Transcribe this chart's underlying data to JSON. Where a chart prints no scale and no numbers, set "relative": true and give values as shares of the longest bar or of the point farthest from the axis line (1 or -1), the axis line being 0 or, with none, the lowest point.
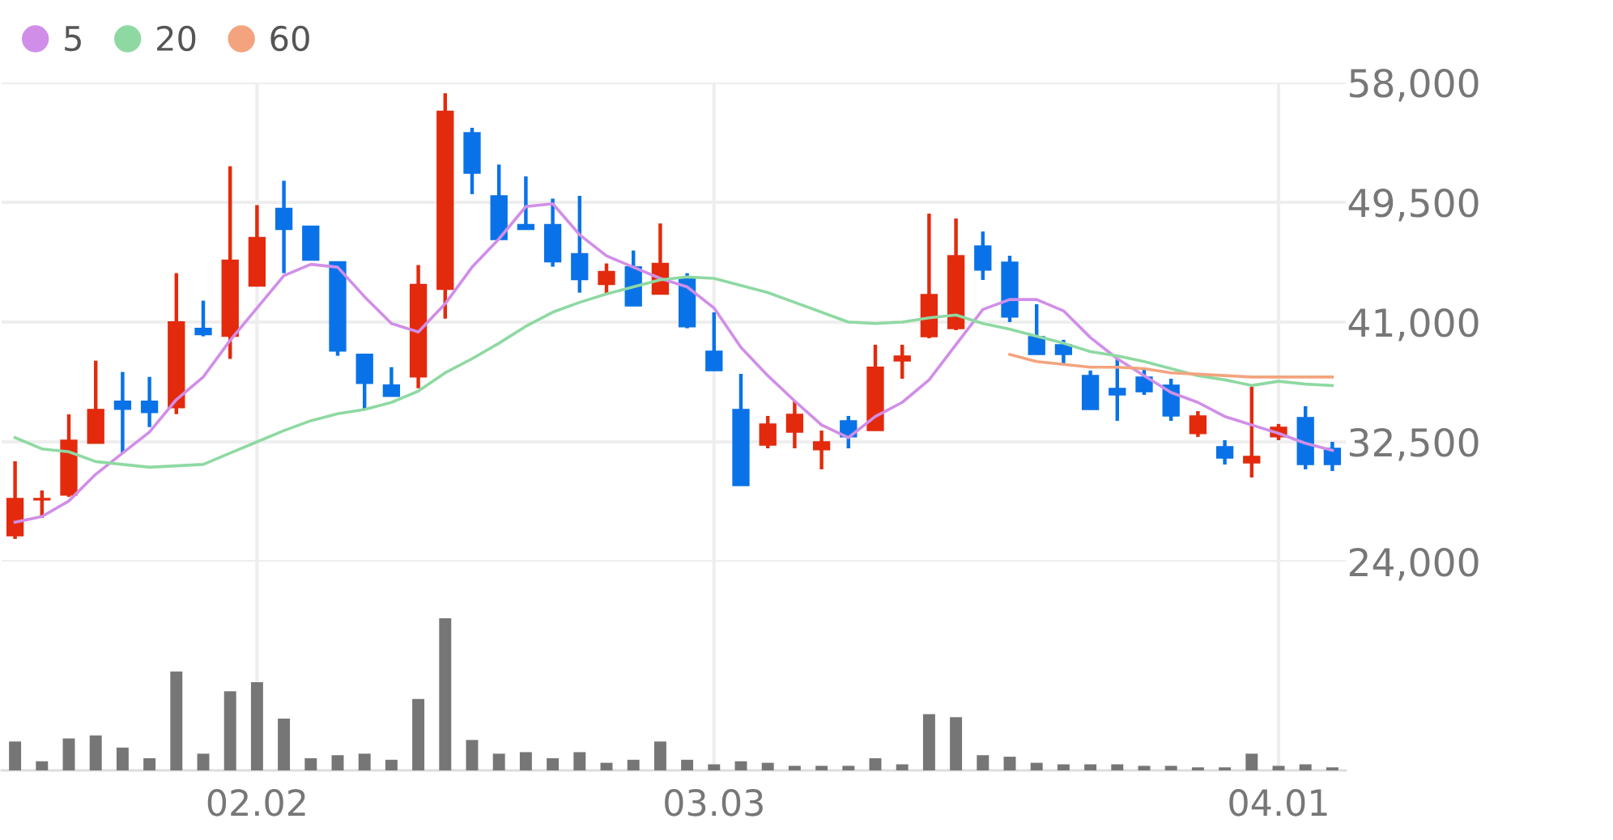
{
  "chart_data": [
    {
      "type": "candlestick",
      "categories": [
        null,
        null,
        null,
        null,
        null,
        null,
        null,
        null,
        null,
        "02.02",
        null,
        null,
        null,
        null,
        null,
        null,
        null,
        null,
        null,
        null,
        null,
        null,
        null,
        null,
        null,
        null,
        "03.03",
        null,
        null,
        null,
        null,
        null,
        null,
        null,
        null,
        null,
        null,
        null,
        null,
        null,
        null,
        null,
        null,
        null,
        null,
        null,
        null,
        "04.01",
        null,
        null
      ],
      "ohlc": [
        [
          25840,
          31120,
          25610,
          28480
        ],
        [
          28370,
          29050,
          27100,
          28480
        ],
        [
          28720,
          34450,
          28600,
          32620
        ],
        [
          32400,
          38260,
          32400,
          34800
        ],
        [
          35390,
          37460,
          31700,
          34810
        ],
        [
          35390,
          37110,
          33550,
          34580
        ],
        [
          34930,
          44470,
          34470,
          41020
        ],
        [
          40560,
          42520,
          39990,
          40100
        ],
        [
          39990,
          52060,
          38380,
          45390
        ],
        [
          43550,
          49300,
          43550,
          47000
        ],
        [
          49070,
          51030,
          44470,
          47580
        ],
        [
          47810,
          47810,
          45390,
          45390
        ],
        [
          45280,
          45280,
          38610,
          38950
        ],
        [
          38720,
          38720,
          34810,
          36650
        ],
        [
          36540,
          37800,
          35730,
          35730
        ],
        [
          37110,
          45050,
          36310,
          43670
        ],
        [
          43320,
          57240,
          41250,
          55970
        ],
        [
          54440,
          54790,
          50080,
          51570
        ],
        [
          49960,
          52180,
          46860,
          46860
        ],
        [
          47920,
          51340,
          47580,
          47580
        ],
        [
          47920,
          49760,
          44930,
          45280
        ],
        [
          45850,
          49960,
          43090,
          44010
        ],
        [
          43670,
          45160,
          42980,
          44590
        ],
        [
          44930,
          46080,
          42150,
          42150
        ],
        [
          42980,
          48000,
          42980,
          45160
        ],
        [
          44100,
          44470,
          40560,
          40660
        ],
        [
          38930,
          41690,
          37550,
          37550
        ],
        [
          34800,
          37320,
          29400,
          29400
        ],
        [
          32270,
          34340,
          32040,
          33760
        ],
        [
          33190,
          35370,
          32040,
          34450
        ],
        [
          31930,
          33300,
          30550,
          32500
        ],
        [
          33990,
          34340,
          32040,
          32850
        ],
        [
          33300,
          39390,
          33300,
          37800
        ],
        [
          38240,
          39390,
          36980,
          38590
        ],
        [
          39970,
          48690,
          39850,
          42950
        ],
        [
          40540,
          48350,
          40430,
          45710
        ],
        [
          46400,
          47430,
          43990,
          44680
        ],
        [
          45250,
          45710,
          41000,
          41350
        ],
        [
          39970,
          42270,
          38700,
          38700
        ],
        [
          39390,
          39740,
          38010,
          38700
        ],
        [
          37210,
          37560,
          34800,
          34800
        ],
        [
          36290,
          38380,
          33990,
          35830
        ],
        [
          37100,
          37780,
          35830,
          36060
        ],
        [
          36520,
          36980,
          33990,
          34340
        ],
        [
          33080,
          34680,
          32850,
          34340
        ],
        [
          32160,
          32620,
          30890,
          31350
        ],
        [
          31010,
          36410,
          29970,
          31470
        ],
        [
          32850,
          33770,
          32620,
          33540
        ],
        [
          34230,
          35030,
          30550,
          30890
        ],
        [
          32040,
          32500,
          30430,
          30890
        ]
      ],
      "colors": [
        "#e32a0d",
        "#e32a0d",
        "#e32a0d",
        "#e32a0d",
        "#0a72e8",
        "#0a72e8",
        "#e32a0d",
        "#0a72e8",
        "#e32a0d",
        "#e32a0d",
        "#0a72e8",
        "#0a72e8",
        "#0a72e8",
        "#0a72e8",
        "#0a72e8",
        "#e32a0d",
        "#e32a0d",
        "#0a72e8",
        "#0a72e8",
        "#0a72e8",
        "#0a72e8",
        "#0a72e8",
        "#e32a0d",
        "#0a72e8",
        "#e32a0d",
        "#0a72e8",
        "#0a72e8",
        "#0a72e8",
        "#e32a0d",
        "#e32a0d",
        "#e32a0d",
        "#0a72e8",
        "#e32a0d",
        "#e32a0d",
        "#e32a0d",
        "#e32a0d",
        "#0a72e8",
        "#0a72e8",
        "#0a72e8",
        "#0a72e8",
        "#0a72e8",
        "#0a72e8",
        "#0a72e8",
        "#0a72e8",
        "#e32a0d",
        "#0a72e8",
        "#e32a0d",
        "#e32a0d",
        "#0a72e8",
        "#0a72e8"
      ],
      "series": [
        {
          "name": "5",
          "type": "line",
          "color": "#d18ee8",
          "values": [
            26800,
            27200,
            28300,
            30200,
            31700,
            33200,
            35500,
            37100,
            39700,
            42000,
            44300,
            45100,
            44900,
            42800,
            40900,
            40300,
            42300,
            44900,
            46900,
            49200,
            49400,
            47200,
            45700,
            44900,
            44100,
            43500,
            42000,
            39200,
            37200,
            35400,
            33700,
            32800,
            34300,
            35300,
            36900,
            39400,
            41900,
            42600,
            42600,
            41800,
            39900,
            38400,
            37200,
            36000,
            35300,
            34300,
            33700,
            33100,
            32400,
            31900
          ]
        },
        {
          "name": "20",
          "type": "line",
          "color": "#8ed9a2",
          "values": [
            32800,
            32000,
            31800,
            31100,
            30900,
            30700,
            30800,
            30900,
            31700,
            32500,
            33300,
            34000,
            34500,
            34800,
            35300,
            36100,
            37400,
            38400,
            39500,
            40700,
            41700,
            42400,
            43000,
            43500,
            44000,
            44200,
            44100,
            43600,
            43100,
            42400,
            41700,
            41000,
            40900,
            41000,
            41300,
            41500,
            40900,
            40500,
            40000,
            39500,
            38900,
            38600,
            38200,
            37700,
            37200,
            36900,
            36500,
            36800,
            36600,
            36500
          ]
        },
        {
          "name": "60",
          "type": "line",
          "color": "#f3a47e",
          "values": [
            null,
            null,
            null,
            null,
            null,
            null,
            null,
            null,
            null,
            null,
            null,
            null,
            null,
            null,
            null,
            null,
            null,
            null,
            null,
            null,
            null,
            null,
            null,
            null,
            null,
            null,
            null,
            null,
            null,
            null,
            null,
            null,
            null,
            null,
            null,
            null,
            null,
            38700,
            38200,
            38000,
            37800,
            37800,
            37700,
            37400,
            37300,
            37200,
            37100,
            37100,
            37100,
            37100
          ]
        }
      ],
      "ylim": [
        24000,
        58000
      ],
      "yticks": [
        {
          "value": 24000,
          "label": "24,000"
        },
        {
          "value": 32500,
          "label": "32,500"
        },
        {
          "value": 41000,
          "label": "41,000"
        },
        {
          "value": 49500,
          "label": "49,500"
        },
        {
          "value": 58000,
          "label": "58,000"
        }
      ],
      "grid": true,
      "legend": "top left",
      "tick_labels": "y"
    },
    {
      "type": "bar",
      "relative": true,
      "color": "#767676",
      "categories": [
        null,
        null,
        null,
        null,
        null,
        null,
        null,
        null,
        null,
        "02.02",
        null,
        null,
        null,
        null,
        null,
        null,
        null,
        null,
        null,
        null,
        null,
        null,
        null,
        null,
        null,
        null,
        "03.03",
        null,
        null,
        null,
        null,
        null,
        null,
        null,
        null,
        null,
        null,
        null,
        null,
        null,
        null,
        null,
        null,
        null,
        null,
        null,
        null,
        "04.01",
        null,
        null
      ],
      "values": [
        0.19,
        0.06,
        0.21,
        0.23,
        0.15,
        0.08,
        0.65,
        0.11,
        0.52,
        0.58,
        0.34,
        0.08,
        0.1,
        0.11,
        0.07,
        0.47,
        1,
        0.2,
        0.11,
        0.12,
        0.08,
        0.12,
        0.05,
        0.07,
        0.19,
        0.07,
        0.04,
        0.06,
        0.05,
        0.03,
        0.03,
        0.03,
        0.08,
        0.04,
        0.37,
        0.35,
        0.1,
        0.09,
        0.05,
        0.04,
        0.04,
        0.04,
        0.03,
        0.03,
        0.02,
        0.02,
        0.11,
        0.03,
        0.04,
        0.02
      ],
      "grid": "x",
      "tick_labels": "x"
    }
  ]
}
